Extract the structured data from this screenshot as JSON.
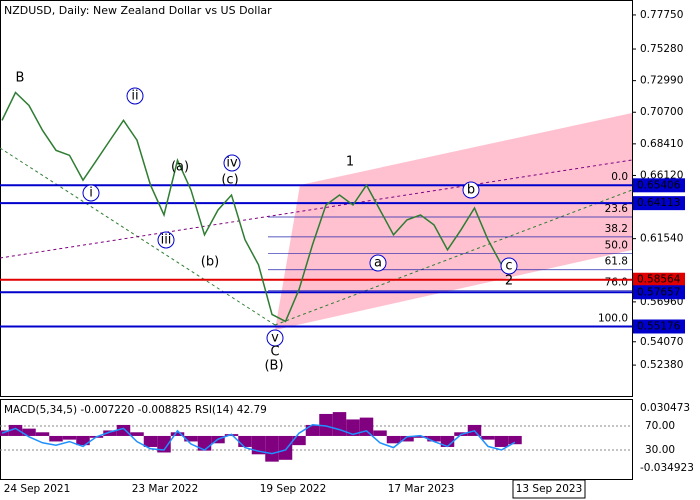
{
  "chart_data": [
    {
      "type": "line",
      "title": "NZDUSD, Daily:  New Zealand Dollar vs US Dollar",
      "ylim": [
        0.5014,
        0.7876
      ],
      "yticks": [
        {
          "value": 0.7775,
          "label": "0.77750"
        },
        {
          "value": 0.7528,
          "label": "0.75280"
        },
        {
          "value": 0.7299,
          "label": "0.72990"
        },
        {
          "value": 0.707,
          "label": "0.70700"
        },
        {
          "value": 0.6841,
          "label": "0.68410"
        },
        {
          "value": 0.6612,
          "label": "0.66120"
        },
        {
          "value": 0.6154,
          "label": "0.61540"
        },
        {
          "value": 0.5696,
          "label": "0.56960"
        },
        {
          "value": 0.5407,
          "label": "0.54070"
        },
        {
          "value": 0.5238,
          "label": "0.52380"
        }
      ],
      "x_labels": [
        "24 Sep 2021",
        "23 Mar 2022",
        "19 Sep 2022",
        "17 Mar 2023",
        "13 Sep 2023"
      ],
      "series": [
        {
          "name": "NZDUSD",
          "color": "#2e7d32",
          "values": [
            0.7011,
            0.7213,
            0.7119,
            0.6939,
            0.6794,
            0.6758,
            0.6578,
            0.6722,
            0.6867,
            0.7011,
            0.6867,
            0.6542,
            0.6326,
            0.6722,
            0.6506,
            0.6182,
            0.6362,
            0.647,
            0.6146,
            0.5965,
            0.5605,
            0.5554,
            0.5785,
            0.611,
            0.6398,
            0.647,
            0.6398,
            0.6542,
            0.6362,
            0.6182,
            0.629,
            0.6326,
            0.6254,
            0.6073,
            0.6218,
            0.6376,
            0.6146,
            0.5965,
            0.5915
          ]
        }
      ],
      "levels": [
        {
          "price": 0.65406,
          "label": "0.65406",
          "color": "#0000cc"
        },
        {
          "price": 0.64113,
          "label": "0.64113",
          "color": "#0000cc"
        },
        {
          "price": 0.58564,
          "label": "0.58564",
          "color": "#e00000"
        },
        {
          "price": 0.57657,
          "label": "0.57657",
          "color": "#0000cc"
        },
        {
          "price": 0.55176,
          "label": "0.55176",
          "color": "#0000cc"
        }
      ],
      "fib_levels": [
        {
          "label": "0.0",
          "price": 0.6542
        },
        {
          "label": "23.6",
          "price": 0.6311
        },
        {
          "label": "38.2",
          "price": 0.6167
        },
        {
          "label": "50.0",
          "price": 0.6045
        },
        {
          "label": "61.8",
          "price": 0.5929
        },
        {
          "label": "76.0",
          "price": 0.5778
        },
        {
          "label": "100.0",
          "price": 0.5518
        }
      ],
      "annotations": [
        "B",
        "ii",
        "i",
        "(a)",
        "iv",
        "(c)",
        "iii",
        "(b)",
        "1",
        "b",
        "a",
        "c",
        "2",
        "v",
        "C",
        "(B)"
      ]
    },
    {
      "type": "indicator",
      "title": "MACD(5,34,5) -0.007220 -0.008825 RSI(14) 42.79",
      "ylim": [
        -0.034923,
        0.030473
      ],
      "yticks": [
        {
          "value": 0.030473,
          "label": "0.030473"
        },
        {
          "value": -0.034923,
          "label": "-0.034923"
        }
      ],
      "y2lim": [
        0,
        100
      ],
      "y2ticks": [
        {
          "value": 70,
          "label": "70.00"
        },
        {
          "value": 30,
          "label": "30.00"
        }
      ],
      "series": [
        {
          "name": "MACD",
          "color": "#800080",
          "values": [
            0.006,
            0.012,
            0.008,
            0.004,
            -0.006,
            -0.004,
            -0.01,
            -0.002,
            0.006,
            0.012,
            0.004,
            -0.012,
            -0.018,
            0.004,
            -0.006,
            -0.016,
            -0.008,
            0.002,
            -0.012,
            -0.02,
            -0.028,
            -0.026,
            -0.01,
            0.012,
            0.024,
            0.026,
            0.018,
            0.02,
            0.006,
            -0.008,
            -0.006,
            -0.002,
            -0.006,
            -0.012,
            0.004,
            0.012,
            -0.004,
            -0.012,
            -0.009
          ]
        },
        {
          "name": "RSI",
          "color": "#1e90ff",
          "axis": "y2",
          "values": [
            58,
            66,
            52,
            42,
            38,
            44,
            36,
            52,
            60,
            66,
            44,
            32,
            30,
            62,
            40,
            30,
            48,
            56,
            34,
            28,
            24,
            30,
            58,
            72,
            70,
            64,
            56,
            62,
            42,
            34,
            52,
            54,
            44,
            36,
            56,
            62,
            36,
            30,
            43
          ]
        }
      ]
    }
  ]
}
